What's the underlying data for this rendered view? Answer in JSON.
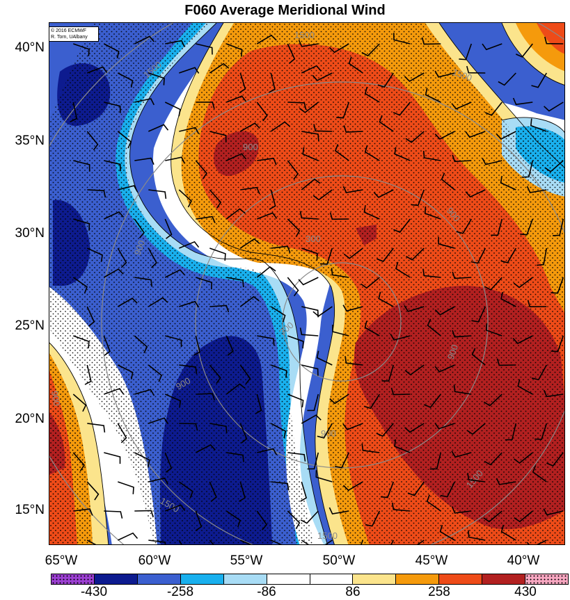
{
  "title": "F060 Average Meridional Wind",
  "credit": {
    "line1": "© 2016 ECMWF",
    "line2": "R. Torn, UAlbany"
  },
  "lat_labels": [
    "40°N",
    "35°N",
    "30°N",
    "25°N",
    "20°N",
    "15°N"
  ],
  "lon_labels": [
    "65°W",
    "60°W",
    "55°W",
    "50°W",
    "45°W",
    "40°W"
  ],
  "colorbar": {
    "colors": [
      "#9b3fd1",
      "#0d1b8f",
      "#3b5fcf",
      "#19b0ee",
      "#a8dcf5",
      "#ffffff",
      "#ffffff",
      "#fbe48c",
      "#f59a0c",
      "#ee4b18",
      "#b22020",
      "#f6a6c0"
    ],
    "labels": [
      "-430",
      "-258",
      "-86",
      "86",
      "258",
      "430"
    ]
  },
  "contour_labels": [
    "1500",
    "1500",
    "1500",
    "900",
    "900",
    "900",
    "900",
    "900",
    "900",
    "300",
    "300",
    "900",
    "1500",
    "1500",
    "1500"
  ]
}
